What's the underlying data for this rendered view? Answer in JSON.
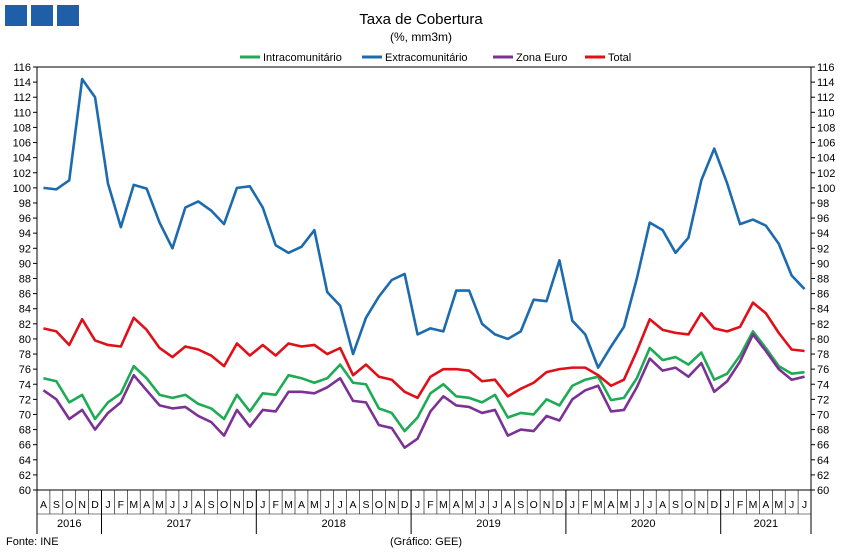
{
  "header": {
    "logo_color": "#1F5FA8"
  },
  "footer": {
    "source": "Fonte: INE",
    "credit": "(Gráfico: GEE)"
  },
  "chart_data": {
    "type": "line",
    "title": "Taxa de Cobertura",
    "subtitle": "(%, mm3m)",
    "ylim": [
      60,
      116
    ],
    "ystep": 2,
    "grid": false,
    "legend_placement": "top-center",
    "months": [
      "A",
      "S",
      "O",
      "N",
      "D",
      "J",
      "F",
      "M",
      "A",
      "M",
      "J",
      "J",
      "A",
      "S",
      "O",
      "N",
      "D",
      "J",
      "F",
      "M",
      "A",
      "M",
      "J",
      "J",
      "A",
      "S",
      "O",
      "N",
      "D",
      "J",
      "F",
      "M",
      "A",
      "M",
      "J",
      "J",
      "A",
      "S",
      "O",
      "N",
      "D",
      "J",
      "F",
      "M",
      "A",
      "M",
      "J",
      "J",
      "A",
      "S",
      "O",
      "N",
      "D",
      "J",
      "F",
      "M",
      "A",
      "M",
      "J",
      "J"
    ],
    "years": [
      {
        "label": "2016",
        "start": 0,
        "end": 4
      },
      {
        "label": "2017",
        "start": 5,
        "end": 16
      },
      {
        "label": "2018",
        "start": 17,
        "end": 28
      },
      {
        "label": "2019",
        "start": 29,
        "end": 40
      },
      {
        "label": "2020",
        "start": 41,
        "end": 52
      },
      {
        "label": "2021",
        "start": 53,
        "end": 59
      }
    ],
    "series": [
      {
        "name": "Intracomunitário",
        "color": "#1FAA55",
        "values": [
          74.8,
          74.4,
          71.6,
          72.6,
          69.4,
          71.6,
          72.8,
          76.4,
          74.8,
          72.6,
          72.2,
          72.6,
          71.4,
          70.8,
          69.4,
          72.6,
          70.4,
          72.8,
          72.6,
          75.2,
          74.8,
          74.2,
          74.8,
          76.6,
          74.2,
          74.0,
          70.8,
          70.2,
          67.8,
          69.6,
          72.8,
          74.0,
          72.4,
          72.2,
          71.6,
          72.6,
          69.6,
          70.2,
          70.0,
          72.0,
          71.2,
          73.8,
          74.6,
          75.0,
          71.9,
          72.2,
          74.8,
          78.8,
          77.2,
          77.6,
          76.6,
          78.2,
          74.6,
          75.4,
          77.8,
          81.0,
          78.8,
          76.4,
          75.4,
          75.6
        ]
      },
      {
        "name": "Extracomunitário",
        "color": "#1C6BAE",
        "values": [
          100.0,
          99.8,
          101.0,
          114.4,
          112.0,
          100.6,
          94.8,
          100.4,
          99.9,
          95.4,
          92.0,
          97.4,
          98.2,
          97.0,
          95.2,
          100.0,
          100.2,
          97.4,
          92.4,
          91.4,
          92.2,
          94.4,
          86.2,
          84.4,
          78.0,
          82.8,
          85.6,
          87.8,
          88.6,
          80.6,
          81.4,
          81.0,
          86.4,
          86.4,
          82.0,
          80.6,
          80.0,
          81.0,
          85.2,
          85.0,
          90.4,
          82.4,
          80.6,
          76.2,
          79.0,
          81.6,
          88.0,
          95.4,
          94.4,
          91.4,
          93.4,
          101.0,
          105.2,
          100.6,
          95.2,
          95.8,
          95.0,
          92.6,
          88.4,
          86.6
        ]
      },
      {
        "name": "Zona Euro",
        "color": "#7B3294",
        "values": [
          73.2,
          72.0,
          69.4,
          70.6,
          68.0,
          70.2,
          71.6,
          75.2,
          73.2,
          71.2,
          70.8,
          71.0,
          69.8,
          69.0,
          67.2,
          70.6,
          68.4,
          70.6,
          70.4,
          73.0,
          73.0,
          72.8,
          73.6,
          74.8,
          71.8,
          71.6,
          68.6,
          68.2,
          65.6,
          66.8,
          70.4,
          72.4,
          71.2,
          71.0,
          70.2,
          70.6,
          67.2,
          68.0,
          67.8,
          69.8,
          69.2,
          72.0,
          73.2,
          73.8,
          70.4,
          70.6,
          73.6,
          77.4,
          75.8,
          76.2,
          75.0,
          76.8,
          73.0,
          74.4,
          77.0,
          80.6,
          78.4,
          76.0,
          74.6,
          75.0
        ]
      },
      {
        "name": "Total",
        "color": "#E0101A",
        "values": [
          81.4,
          81.0,
          79.2,
          82.6,
          79.8,
          79.2,
          79.0,
          82.8,
          81.2,
          78.8,
          77.6,
          79.0,
          78.6,
          77.8,
          76.4,
          79.4,
          77.8,
          79.2,
          77.8,
          79.4,
          79.0,
          79.2,
          78.0,
          78.8,
          75.2,
          76.6,
          75.0,
          74.6,
          73.0,
          72.2,
          75.0,
          76.0,
          76.0,
          75.8,
          74.4,
          74.6,
          72.4,
          73.4,
          74.2,
          75.6,
          76.0,
          76.2,
          76.2,
          75.2,
          73.8,
          74.6,
          78.4,
          82.6,
          81.2,
          80.8,
          80.6,
          83.4,
          81.4,
          81.0,
          81.6,
          84.8,
          83.4,
          80.8,
          78.6,
          78.4
        ]
      }
    ]
  }
}
